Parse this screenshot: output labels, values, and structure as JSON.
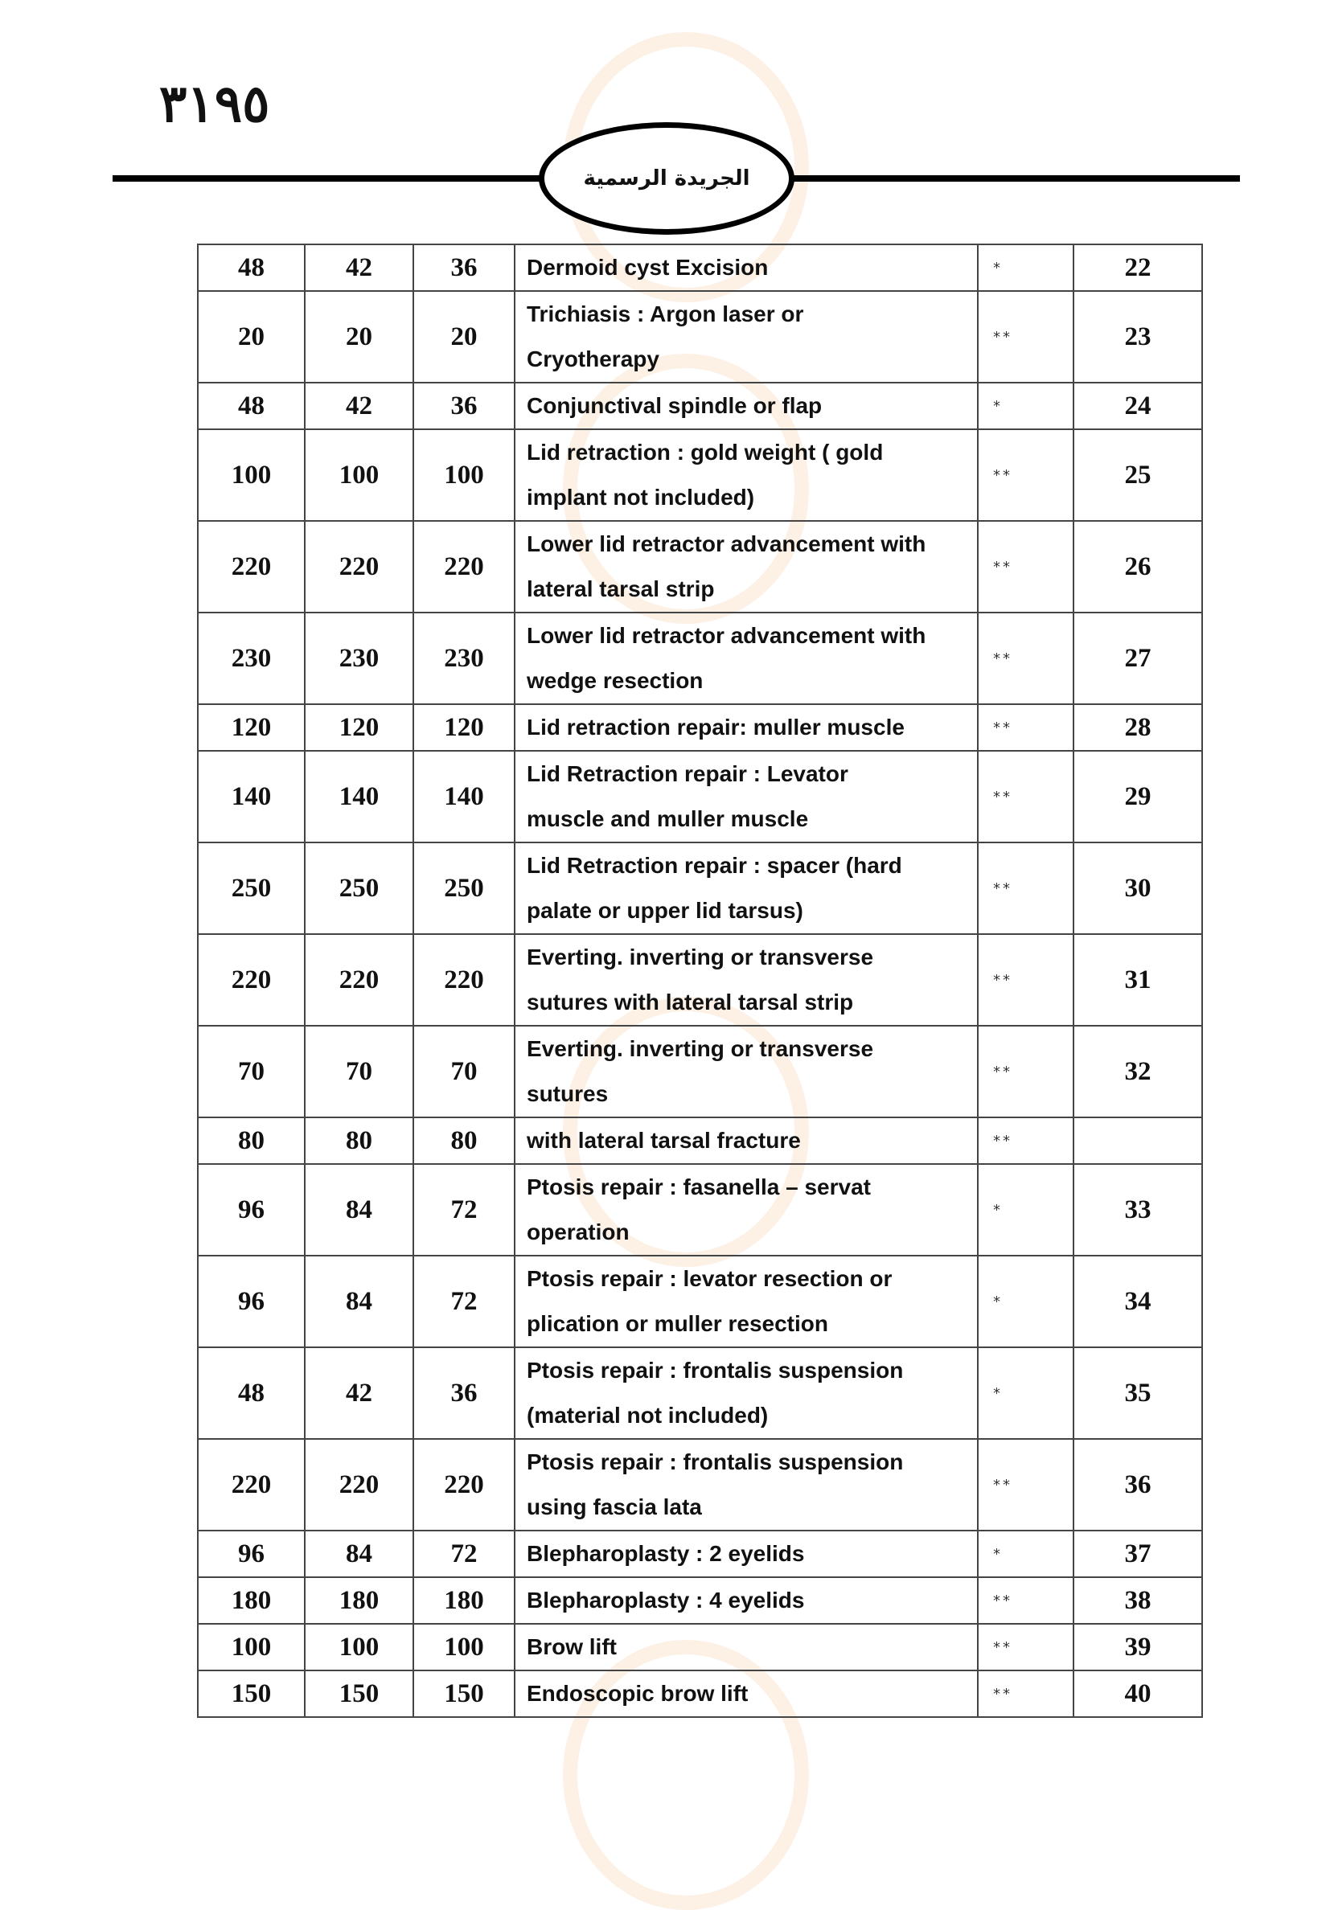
{
  "header": {
    "page_number": "٣١٩٥",
    "gazette_title": "الجريدة الرسمية"
  },
  "table": {
    "rows": [
      {
        "c1": "48",
        "c2": "42",
        "c3": "36",
        "desc": [
          "Dermoid cyst Excision"
        ],
        "mark": "*",
        "no": "22"
      },
      {
        "c1": "20",
        "c2": "20",
        "c3": "20",
        "desc": [
          "Trichiasis : Argon laser or",
          "Cryotherapy"
        ],
        "mark": "**",
        "no": "23"
      },
      {
        "c1": "48",
        "c2": "42",
        "c3": "36",
        "desc": [
          "Conjunctival spindle or flap"
        ],
        "mark": "*",
        "no": "24"
      },
      {
        "c1": "100",
        "c2": "100",
        "c3": "100",
        "desc": [
          "Lid retraction : gold weight ( gold",
          "implant not included)"
        ],
        "mark": "**",
        "no": "25"
      },
      {
        "c1": "220",
        "c2": "220",
        "c3": "220",
        "desc": [
          "Lower lid retractor advancement with",
          "lateral tarsal strip"
        ],
        "mark": "**",
        "no": "26"
      },
      {
        "c1": "230",
        "c2": "230",
        "c3": "230",
        "desc": [
          "Lower lid retractor advancement with",
          "wedge resection"
        ],
        "mark": "**",
        "no": "27"
      },
      {
        "c1": "120",
        "c2": "120",
        "c3": "120",
        "desc": [
          "Lid retraction repair: muller muscle"
        ],
        "mark": "**",
        "no": "28"
      },
      {
        "c1": "140",
        "c2": "140",
        "c3": "140",
        "desc": [
          "Lid Retraction repair : Levator",
          "muscle and muller  muscle"
        ],
        "mark": "**",
        "no": "29"
      },
      {
        "c1": "250",
        "c2": "250",
        "c3": "250",
        "desc": [
          "Lid Retraction repair : spacer (hard",
          "palate or upper lid tarsus)"
        ],
        "mark": "**",
        "no": "30"
      },
      {
        "c1": "220",
        "c2": "220",
        "c3": "220",
        "desc": [
          "Everting. inverting or transverse",
          "sutures with lateral tarsal strip"
        ],
        "mark": "**",
        "no": "31"
      },
      {
        "c1": "70",
        "c2": "70",
        "c3": "70",
        "desc": [
          "Everting. inverting or transverse",
          "sutures"
        ],
        "mark": "**",
        "no": "32"
      },
      {
        "c1": "80",
        "c2": "80",
        "c3": "80",
        "desc": [
          "with lateral tarsal fracture"
        ],
        "mark": "**",
        "no": ""
      },
      {
        "c1": "96",
        "c2": "84",
        "c3": "72",
        "desc": [
          "Ptosis repair : fasanella – servat",
          "operation"
        ],
        "mark": "*",
        "no": "33"
      },
      {
        "c1": "96",
        "c2": "84",
        "c3": "72",
        "desc": [
          "Ptosis repair : levator resection or",
          "plication or muller resection"
        ],
        "mark": "*",
        "no": "34"
      },
      {
        "c1": "48",
        "c2": "42",
        "c3": "36",
        "desc": [
          "Ptosis repair : frontalis suspension",
          "(material not included)"
        ],
        "mark": "*",
        "no": "35"
      },
      {
        "c1": "220",
        "c2": "220",
        "c3": "220",
        "desc": [
          "Ptosis repair : frontalis suspension",
          "using fascia lata"
        ],
        "mark": "**",
        "no": "36"
      },
      {
        "c1": "96",
        "c2": "84",
        "c3": "72",
        "desc": [
          "Blepharoplasty : 2 eyelids"
        ],
        "mark": "*",
        "no": "37"
      },
      {
        "c1": "180",
        "c2": "180",
        "c3": "180",
        "desc": [
          "Blepharoplasty : 4 eyelids"
        ],
        "mark": "**",
        "no": "38"
      },
      {
        "c1": "100",
        "c2": "100",
        "c3": "100",
        "desc": [
          "Brow lift"
        ],
        "mark": "**",
        "no": "39"
      },
      {
        "c1": "150",
        "c2": "150",
        "c3": "150",
        "desc": [
          "Endoscopic brow lift"
        ],
        "mark": "**",
        "no": "40"
      }
    ]
  }
}
